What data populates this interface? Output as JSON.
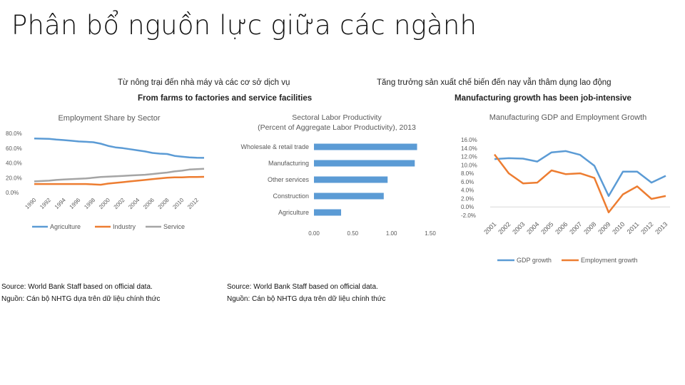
{
  "slide_title": "Phân bổ nguồn lực giữa các ngành",
  "left_section": {
    "heading_vi": "Từ nông trại đến nhà máy và các cơ sở dịch vụ",
    "heading_en": "From farms to factories and service facilities"
  },
  "right_section": {
    "heading_vi": "Tăng trưởng sản xuất chế biến đến nay vẫn thâm dụng lao động",
    "heading_en": "Manufacturing growth has been job-intensive"
  },
  "sources": {
    "left_en": "Source: World Bank Staff based on official data.",
    "left_vi": "Nguồn: Cán bộ NHTG dựa trên dữ liệu chính thức",
    "mid_en": "Source: World Bank Staff based on official data.",
    "mid_vi": "Nguồn: Cán bộ NHTG dựa trên dữ liệu chính thức"
  },
  "colors": {
    "blue": "#5b9bd5",
    "orange": "#ed7d31",
    "gray": "#a5a5a5",
    "axis_text": "#595959",
    "grid": "#d9d9d9"
  },
  "chart_data": [
    {
      "type": "line",
      "title": "Employment Share by Sector",
      "x": [
        "1990",
        "1991",
        "1992",
        "1993",
        "1994",
        "1995",
        "1996",
        "1997",
        "1998",
        "1999",
        "2000",
        "2001",
        "2002",
        "2003",
        "2004",
        "2005",
        "2006",
        "2007",
        "2008",
        "2009",
        "2010",
        "2011",
        "2012",
        "2013"
      ],
      "xticks": [
        "1990",
        "1992",
        "1994",
        "1996",
        "1998",
        "2000",
        "2002",
        "2004",
        "2006",
        "2008",
        "2010",
        "2012"
      ],
      "yticks": [
        "0.0%",
        "20.0%",
        "40.0%",
        "60.0%",
        "80.0%"
      ],
      "ylim": [
        0,
        80
      ],
      "grid": false,
      "legend": "bottom",
      "series": [
        {
          "name": "Agriculture",
          "values": [
            73.0,
            72.8,
            72.5,
            71.5,
            70.8,
            70.0,
            69.0,
            68.5,
            68.0,
            66.0,
            63.0,
            61.0,
            60.0,
            58.5,
            57.0,
            55.5,
            53.5,
            52.5,
            52.0,
            49.5,
            48.5,
            47.5,
            47.0,
            46.8
          ]
        },
        {
          "name": "Industry",
          "values": [
            11.5,
            11.5,
            11.5,
            11.5,
            11.5,
            11.5,
            11.5,
            11.5,
            11.0,
            10.5,
            12.0,
            13.0,
            14.0,
            15.0,
            16.0,
            17.0,
            18.0,
            19.0,
            20.0,
            20.5,
            20.5,
            21.0,
            21.0,
            21.2
          ]
        },
        {
          "name": "Service",
          "values": [
            15.0,
            15.5,
            16.0,
            17.0,
            17.5,
            18.0,
            18.5,
            19.0,
            20.0,
            21.0,
            21.5,
            22.0,
            22.5,
            23.0,
            23.5,
            24.0,
            25.0,
            26.0,
            27.0,
            28.5,
            29.5,
            31.0,
            31.5,
            32.0
          ]
        }
      ]
    },
    {
      "type": "bar",
      "orientation": "horizontal",
      "title": "Sectoral Labor Productivity",
      "subtitle": "(Percent of Aggregate Labor Productivity), 2013",
      "categories": [
        "Wholesale & retail trade",
        "Manufacturing",
        "Other services",
        "Construction",
        "Agriculture"
      ],
      "values": [
        1.33,
        1.3,
        0.95,
        0.9,
        0.35
      ],
      "xticks": [
        "0.00",
        "0.50",
        "1.00",
        "1.50"
      ],
      "xlim": [
        0,
        1.5
      ],
      "grid": false
    },
    {
      "type": "line",
      "title": "Manufacturing GDP and Employment Growth",
      "x": [
        "2001",
        "2002",
        "2003",
        "2004",
        "2005",
        "2006",
        "2007",
        "2008",
        "2009",
        "2010",
        "2011",
        "2012",
        "2013"
      ],
      "yticks": [
        "-2.0%",
        "0.0%",
        "2.0%",
        "4.0%",
        "6.0%",
        "8.0%",
        "10.0%",
        "12.0%",
        "14.0%",
        "16.0%"
      ],
      "ylim": [
        -2,
        16
      ],
      "grid": false,
      "legend": "bottom",
      "series": [
        {
          "name": "GDP growth",
          "values": [
            11.4,
            11.6,
            11.5,
            10.8,
            13.0,
            13.3,
            12.4,
            9.8,
            2.6,
            8.4,
            8.4,
            5.8,
            7.4
          ]
        },
        {
          "name": "Employment growth",
          "values": [
            12.5,
            8.0,
            5.6,
            5.8,
            8.7,
            7.8,
            8.0,
            6.9,
            -1.3,
            3.0,
            4.9,
            1.9,
            2.6
          ]
        }
      ]
    }
  ]
}
